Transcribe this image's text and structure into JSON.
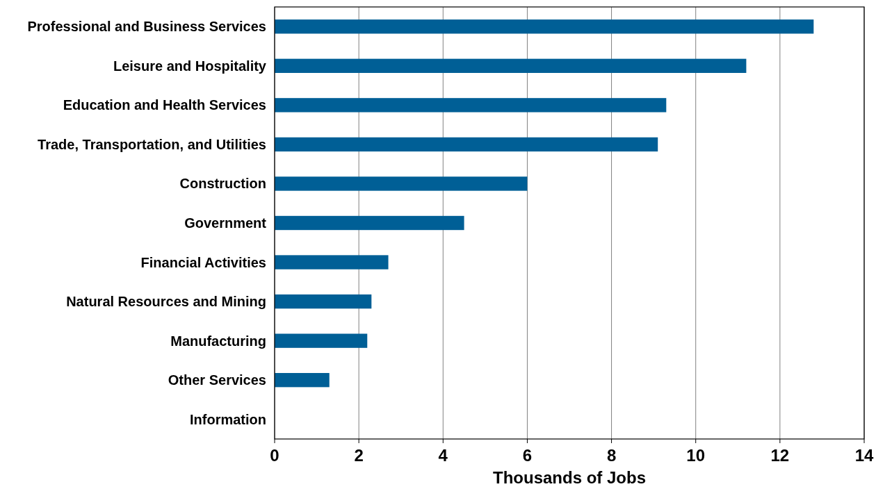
{
  "chart_data": {
    "type": "bar",
    "orientation": "horizontal",
    "xlabel": "Thousands of Jobs",
    "categories": [
      "Professional and Business Services",
      "Leisure and Hospitality",
      "Education and Health Services",
      "Trade, Transportation, and Utilities",
      "Construction",
      "Government",
      "Financial Activities",
      "Natural Resources and Mining",
      "Manufacturing",
      "Other Services",
      "Information"
    ],
    "values": [
      12.8,
      11.2,
      9.3,
      9.1,
      6.0,
      4.5,
      2.7,
      2.3,
      2.2,
      1.3,
      0
    ],
    "color": "#005f96",
    "xlim": [
      0,
      14
    ],
    "xticks": [
      0,
      2,
      4,
      6,
      8,
      10,
      12,
      14
    ],
    "grid": "x"
  }
}
